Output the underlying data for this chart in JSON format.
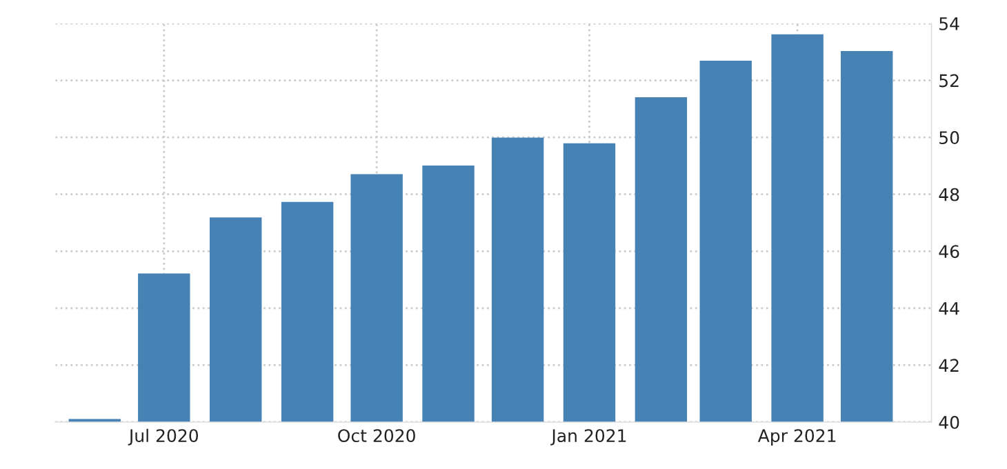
{
  "chart_data": {
    "type": "bar",
    "x": [
      "2020-06",
      "2020-07",
      "2020-08",
      "2020-09",
      "2020-10",
      "2020-11",
      "2020-12",
      "2021-01",
      "2021-02",
      "2021-03",
      "2021-04",
      "2021-05"
    ],
    "series": [
      {
        "color": "#4682b4",
        "values": [
          40.11,
          45.22,
          47.19,
          47.73,
          48.71,
          49.01,
          49.99,
          49.79,
          51.41,
          52.69,
          53.62,
          53.03
        ]
      }
    ],
    "xlim": [
      "2020-05-15",
      "2021-05-29"
    ],
    "xticks": [
      {
        "value": "2020-07",
        "label": "Jul 2020"
      },
      {
        "value": "2020-10",
        "label": "Oct 2020"
      },
      {
        "value": "2021-01",
        "label": "Jan 2021"
      },
      {
        "value": "2021-04",
        "label": "Apr 2021"
      }
    ],
    "ylim": [
      40,
      54
    ],
    "yticks": [
      40,
      42,
      44,
      46,
      48,
      50,
      52,
      54
    ],
    "grid": true,
    "legend": false
  }
}
